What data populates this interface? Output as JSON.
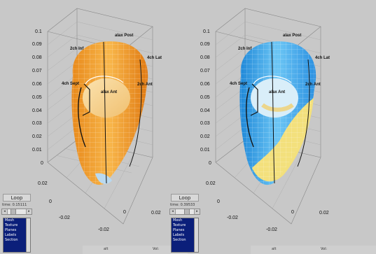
{
  "panels": [
    {
      "loop_label": "Loop",
      "time_text": "time: 0.15111",
      "list_items": [
        "Mesh",
        "Texture",
        "Planes",
        "Labels",
        "Section"
      ],
      "bottom_left": "alt",
      "bottom_right": "Vol:",
      "colormap": "orange"
    },
    {
      "loop_label": "Loop",
      "time_text": "time: 0.39533",
      "list_items": [
        "Mesh",
        "Texture",
        "Planes",
        "Labels",
        "Section"
      ],
      "bottom_left": "alt",
      "bottom_right": "Vol:",
      "colormap": "blue"
    }
  ],
  "plot": {
    "z_ticks": [
      "0.1",
      "0.09",
      "0.08",
      "0.07",
      "0.06",
      "0.05",
      "0.04",
      "0.03",
      "0.02",
      "0.01",
      "0"
    ],
    "y_ticks": [
      "0.02",
      "0",
      "-0.02"
    ],
    "x_ticks": [
      "-0.02",
      "0",
      "0.02"
    ],
    "labels": [
      "alax Post",
      "2ch Inf",
      "4ch Lat",
      "4ch Sept",
      "alax Ant",
      "2ch Ant"
    ]
  },
  "colors": {
    "background": "#c8c8c8",
    "orange": "#f2a43a",
    "blue": "#2f9be0",
    "yellow": "#f1e08a"
  }
}
